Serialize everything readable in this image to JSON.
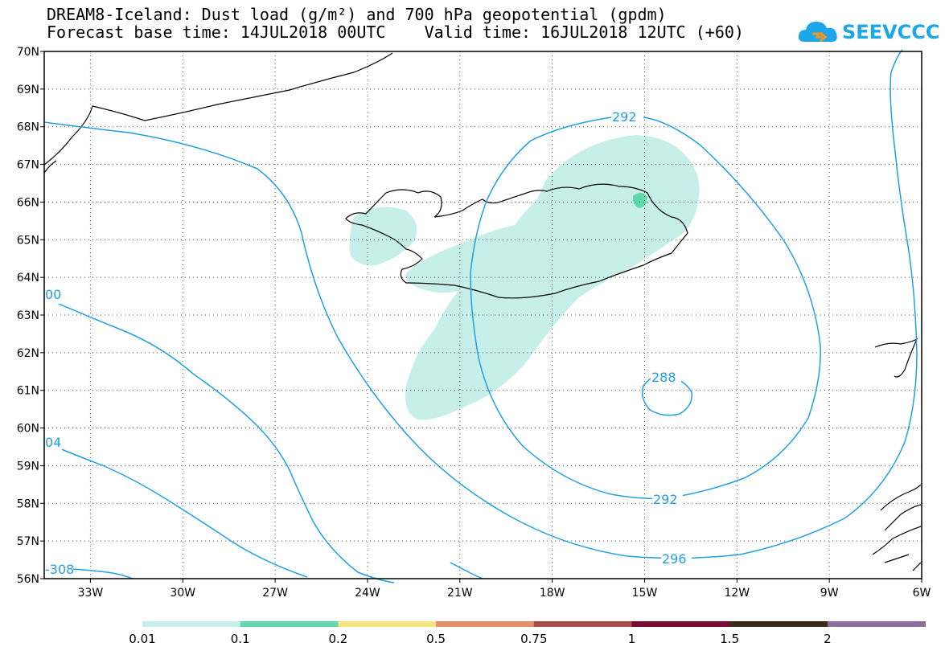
{
  "title_line1": "DREAM8-Iceland: Dust load (g/m²) and 700 hPa geopotential (gpdm)",
  "title_line2": "Forecast base time: 14JUL2018 00UTC    Valid time: 16JUL2018 12UTC (+60)",
  "logo_text": "SEEVCCC",
  "lat_labels": [
    "70N",
    "69N",
    "68N",
    "67N",
    "66N",
    "65N",
    "64N",
    "63N",
    "62N",
    "61N",
    "60N",
    "59N",
    "58N",
    "57N",
    "56N"
  ],
  "lon_labels": [
    "33W",
    "30W",
    "27W",
    "24W",
    "21W",
    "18W",
    "15W",
    "12W",
    "9W",
    "6W"
  ],
  "contour_labels": [
    "292",
    "288",
    "292",
    "296",
    "00",
    "04",
    "-308"
  ],
  "legend": {
    "values": [
      "0.01",
      "0.1",
      "0.2",
      "0.5",
      "0.75",
      "1",
      "1.5",
      "2"
    ],
    "colors": [
      "#c7efe9",
      "#5ed9ad",
      "#f4e47c",
      "#e38d6d",
      "#a74e45",
      "#7c0a33",
      "#3a2a18",
      "#8e6e9c"
    ]
  },
  "colors": {
    "contour": "#1fa0e6",
    "dust_low": "#c7efe9",
    "dust_mid": "#5ed9ad"
  }
}
